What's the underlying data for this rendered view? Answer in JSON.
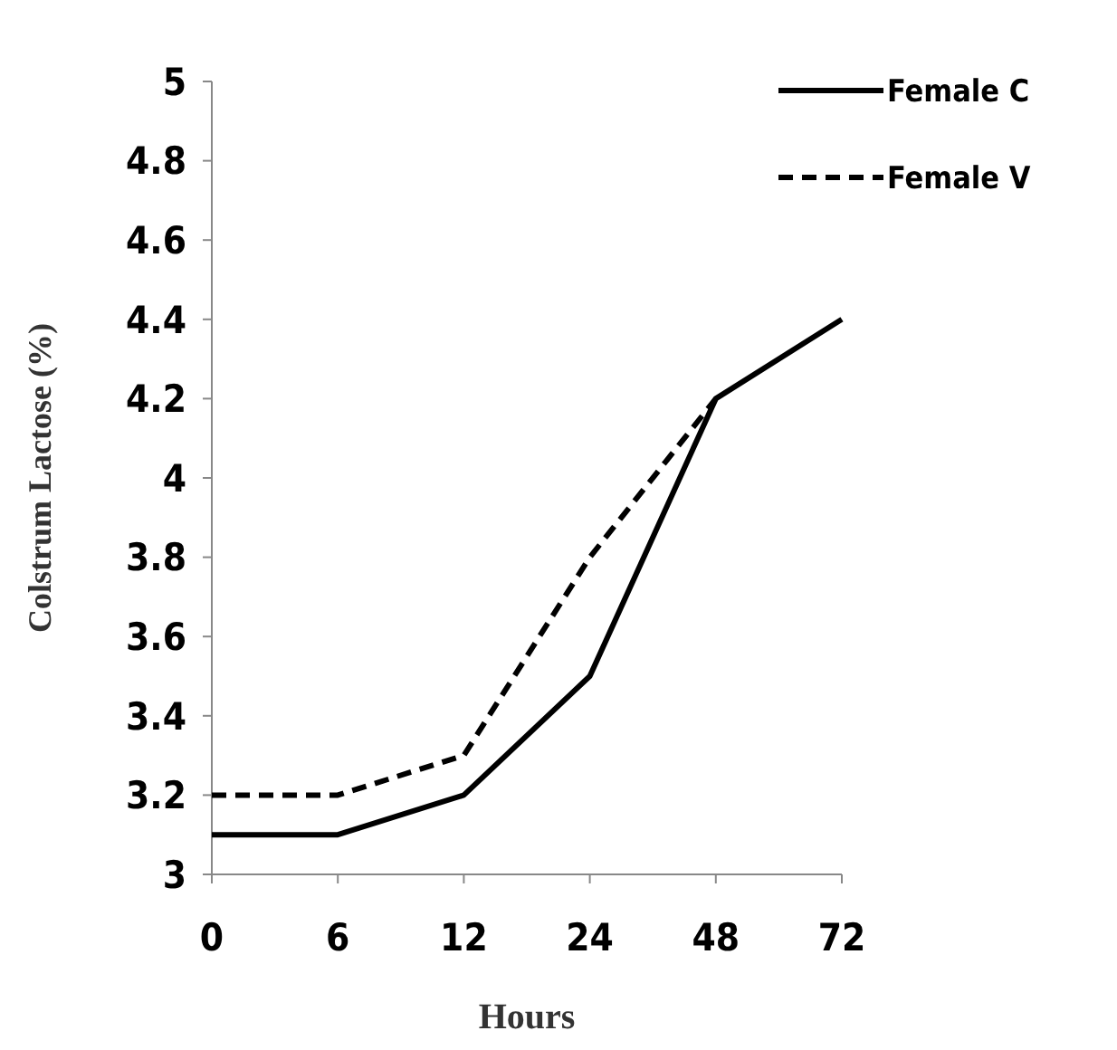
{
  "chart_data": {
    "type": "line",
    "xlabel": "Hours",
    "ylabel": "Colstrum Lactose (%)",
    "categories": [
      "0",
      "6",
      "12",
      "24",
      "48",
      "72"
    ],
    "ylim": [
      3,
      5
    ],
    "yticks": [
      3,
      3.2,
      3.4,
      3.6,
      3.8,
      4,
      4.2,
      4.4,
      4.6,
      4.8,
      5
    ],
    "grid": false,
    "legend": "top right",
    "series": [
      {
        "name": "Female C",
        "color": "#000000",
        "line_style": "solid",
        "values": [
          3.1,
          3.1,
          3.2,
          3.5,
          4.2,
          4.4
        ]
      },
      {
        "name": "Female V",
        "color": "#000000",
        "line_style": "dashed",
        "values": [
          3.2,
          3.2,
          3.3,
          3.8,
          4.2,
          null
        ]
      }
    ]
  }
}
